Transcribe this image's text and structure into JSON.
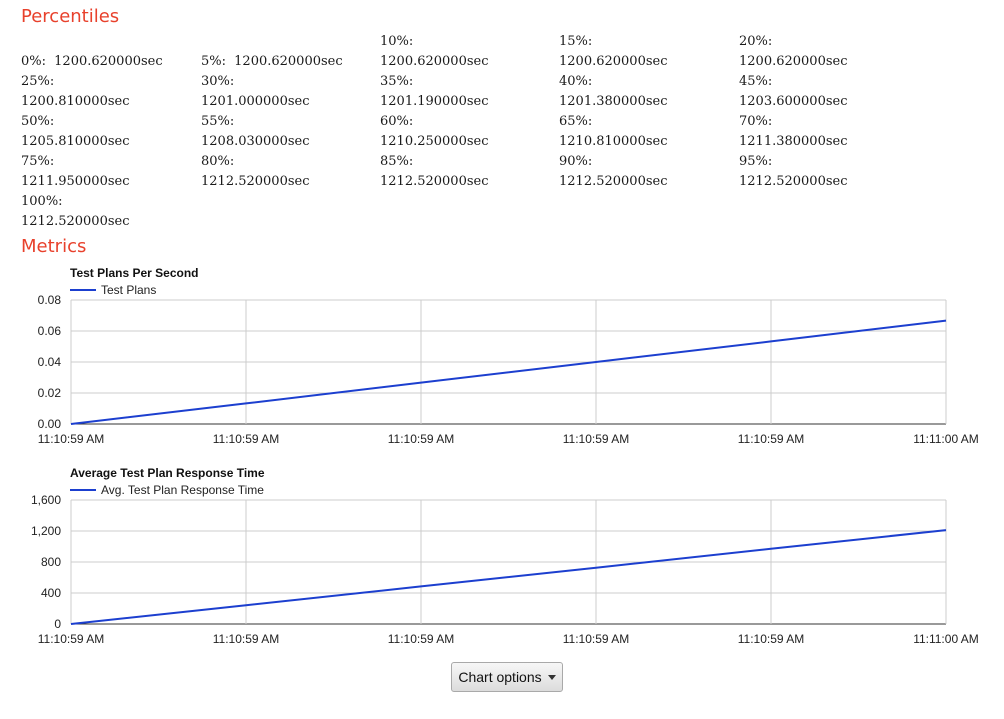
{
  "percentiles": {
    "title": "Percentiles",
    "items": [
      {
        "label": "0%:",
        "value": "1200.620000sec"
      },
      {
        "label": "5%:",
        "value": "1200.620000sec"
      },
      {
        "label": "10%:",
        "value": "1200.620000sec"
      },
      {
        "label": "15%:",
        "value": "1200.620000sec"
      },
      {
        "label": "20%:",
        "value": "1200.620000sec"
      },
      {
        "label": "25%:",
        "value": "1200.810000sec"
      },
      {
        "label": "30%:",
        "value": "1201.000000sec"
      },
      {
        "label": "35%:",
        "value": "1201.190000sec"
      },
      {
        "label": "40%:",
        "value": "1201.380000sec"
      },
      {
        "label": "45%:",
        "value": "1203.600000sec"
      },
      {
        "label": "50%:",
        "value": "1205.810000sec"
      },
      {
        "label": "55%:",
        "value": "1208.030000sec"
      },
      {
        "label": "60%:",
        "value": "1210.250000sec"
      },
      {
        "label": "65%:",
        "value": "1210.810000sec"
      },
      {
        "label": "70%:",
        "value": "1211.380000sec"
      },
      {
        "label": "75%:",
        "value": "1211.950000sec"
      },
      {
        "label": "80%:",
        "value": "1212.520000sec"
      },
      {
        "label": "85%:",
        "value": "1212.520000sec"
      },
      {
        "label": "90%:",
        "value": "1212.520000sec"
      },
      {
        "label": "95%:",
        "value": "1212.520000sec"
      },
      {
        "label": "100%:",
        "value": "1212.520000sec"
      }
    ]
  },
  "metrics": {
    "title": "Metrics"
  },
  "chart_data": [
    {
      "type": "line",
      "title": "Test Plans Per Second",
      "x": [
        "11:10:59 AM",
        "11:10:59 AM",
        "11:10:59 AM",
        "11:10:59 AM",
        "11:10:59 AM",
        "11:11:00 AM"
      ],
      "series": [
        {
          "name": "Test Plans",
          "values": [
            0,
            0.0133,
            0.0267,
            0.04,
            0.0533,
            0.0667
          ],
          "color": "#1c3fcf"
        }
      ],
      "y_ticks": [
        "0.00",
        "0.02",
        "0.04",
        "0.06",
        "0.08"
      ],
      "ylim": [
        0,
        0.08
      ],
      "legend": "top-left",
      "grid": true
    },
    {
      "type": "line",
      "title": "Average Test Plan Response Time",
      "x": [
        "11:10:59 AM",
        "11:10:59 AM",
        "11:10:59 AM",
        "11:10:59 AM",
        "11:10:59 AM",
        "11:11:00 AM"
      ],
      "series": [
        {
          "name": "Avg. Test Plan Response Time",
          "values": [
            0,
            242,
            485,
            727,
            970,
            1212
          ],
          "color": "#1c3fcf"
        }
      ],
      "y_ticks": [
        "0",
        "400",
        "800",
        "1,200",
        "1,600"
      ],
      "ylim": [
        0,
        1600
      ],
      "legend": "top-left",
      "grid": true
    }
  ],
  "controls": {
    "chart_options_label": "Chart options",
    "caret_icon": "caret-down-icon"
  }
}
